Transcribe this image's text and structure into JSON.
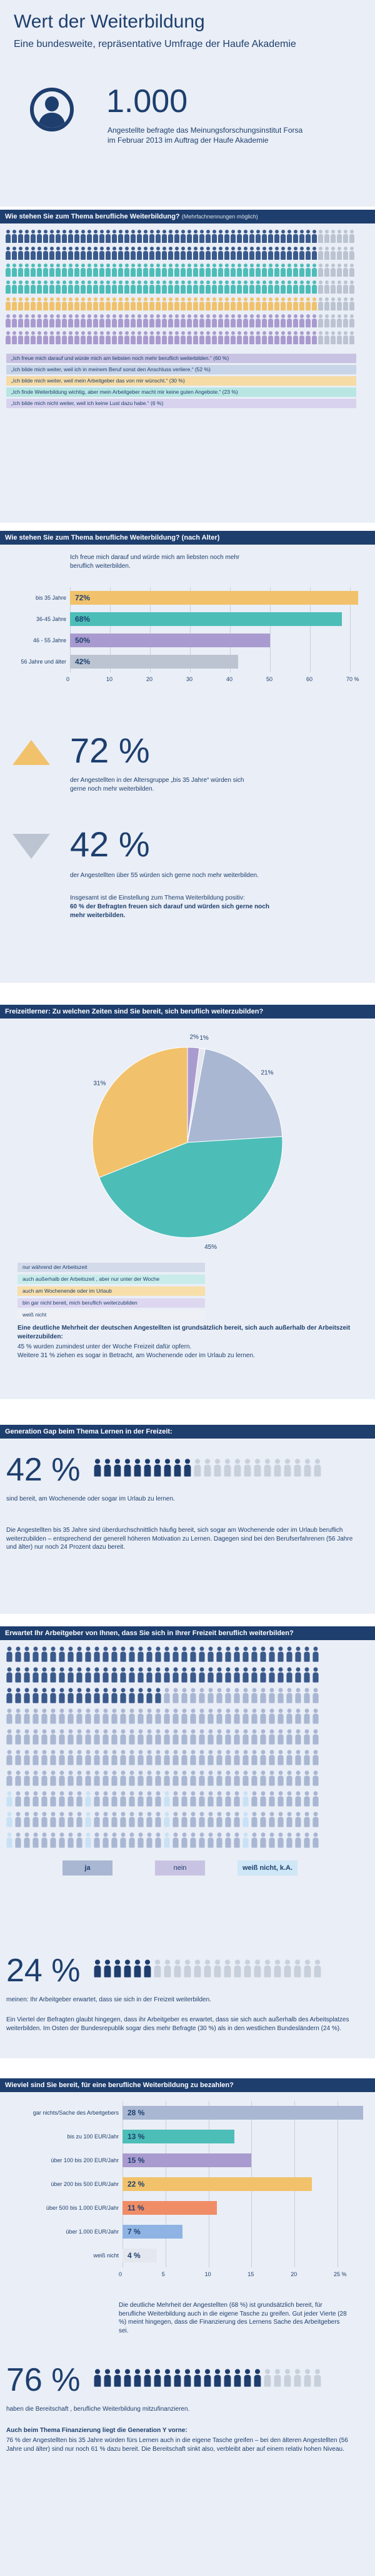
{
  "header": {
    "title": "Wert der Weiterbildung",
    "subtitle": "Eine bundesweite, repräsentative Umfrage der Haufe Akademie",
    "count": "1.000",
    "count_desc_1": "Angestellte befragte das Meinungsforschungsinstitut Forsa",
    "count_desc_2": "im Februar 2013 im Auftrag der Haufe Akademie",
    "icon": "person-avatar-icon"
  },
  "colors": {
    "navy": "#1e3e6e",
    "blue": "#3a5a8c",
    "teal": "#4dbdb8",
    "yellow": "#f1c26b",
    "purple": "#a99bcf",
    "lavender": "#c9c3e3",
    "grey": "#bcc4d2",
    "orange": "#f08d67",
    "light_bg": "#eaeef6"
  },
  "s1": {
    "title": "Wie stehen Sie zum Thema berufliche Weiterbildung?",
    "title_note": "(Mehrfachnennungen möglich)",
    "legend": [
      "„Ich freue mich darauf und würde mich am liebsten noch mehr beruflich weiterbilden.“ (60 %)",
      "„Ich bilde mich weiter, weil ich in meinem Beruf sonst den Anschluss verliere.“ (52 %)",
      "„Ich bilde mich weiter, weil mein Arbeitgeber das von mir wünscht.“ (30 %)",
      "„Ich finde Weiterbildung wichtig, aber mein Arbeitgeber macht mir keine guten Angebote.“ (23 %)",
      "„Ich bilde mich nicht weiter, weil ich keine Lust dazu habe.“ (6 %)"
    ]
  },
  "s2": {
    "title": "Wie stehen Sie zum Thema berufliche Weiterbildung? (nach Alter)",
    "question": "Ich freue mich darauf und würde mich am liebsten noch mehr beruflich weiterbilden.",
    "stat1_value": "72 %",
    "stat1_text": "der Angestellten in der Altersgruppe „bis 35 Jahre“ würden sich gerne noch mehr weiterbilden.",
    "stat2_value": "42 %",
    "stat2_text": "der Angestellten über 55 würden sich gerne noch mehr weiterbilden.",
    "summary_1": "Insgesamt ist die Einstellung zum Thema Weiterbildung positiv:",
    "summary_2": "60 % der Befragten freuen sich darauf und würden sich gerne noch mehr weiterbilden."
  },
  "s3": {
    "title": "Freizeitlerner: Zu welchen Zeiten sind Sie bereit, sich beruflich weiterzubilden?",
    "legend": [
      "nur während der Arbeitszeit",
      "auch außerhalb der Arbeitszeit , aber nur unter der Woche",
      "auch am Wochenende oder im Urlaub",
      "bin gar nicht bereit, mich beruflich weiterzubilden",
      "weiß nicht"
    ],
    "text_bold": "Eine deutliche Mehrheit der deutschen Angestellten ist grundsätzlich bereit, sich auch außerhalb der Arbeitszeit weiterzubilden:",
    "text_1": "45 % wurden zumindest unter der Woche Freizeit dafür opfern.",
    "text_2": "Weitere 31 % ziehen es sogar in Betracht, am Wochenende oder im Urlaub zu lernen."
  },
  "s4": {
    "title": "Generation Gap beim Thema Lernen in der Freizeit:",
    "stat_value": "42 %",
    "stat_caption": "sind bereit, am Wochenende oder sogar im Urlaub zu lernen.",
    "paragraph": "Die Angestellten bis 35 Jahre sind überdurchschnittlich häufig bereit, sich sogar am Wochenende oder im Urlaub beruflich weiterzubilden – entsprechend der generell höheren Motivation zu Lernen. Dagegen sind bei den Berufserfahrenen (56 Jahre und älter) nur noch 24 Prozent dazu bereit."
  },
  "s5": {
    "title": "Erwartet Ihr Arbeitgeber von Ihnen, dass Sie sich in Ihrer Freizeit beruflich weiterbilden?",
    "legend": [
      "ja",
      "nein",
      "weiß nicht, k.A."
    ],
    "stat_value": "24 %",
    "stat_caption": "meinen: Ihr Arbeitgeber erwartet, dass sie sich in der Freizeit weiterbilden.",
    "paragraph": "Ein Viertel der Befragten glaubt hingegen, dass ihr Arbeitgeber es erwartet, dass sie sich auch außerhalb des Arbeitsplatzes weiterbilden. Im Osten der Bundesrepublik sogar dies mehr Befragte (30 %) als in den westlichen Bundesländern (24 %)."
  },
  "s6": {
    "title": "Wieviel sind Sie bereit, für eine berufliche Weiterbildung zu bezahlen?",
    "summary": "Die deutliche Mehrheit der Angestellten (68 %) ist grundsätzlich bereit, für berufliche Weiterbildung auch in die eigene Tasche zu greifen. Gut jeder Vierte (28 %) meint hingegen, dass die Finanzierung des Lernens Sache des Arbeitgebers sei.",
    "stat_value": "76 %",
    "stat_caption": "haben die Bereitschaft , berufliche Weiterbildung mitzufinanzieren.",
    "footer_bold": "Auch beim Thema Finanzierung liegt die Generation Y vorne:",
    "footer_text": "76 % der Angestellten bis 35 Jahre würden fürs Lernen auch in die eigene Tasche greifen – bei den älteren Angestellten (56 Jahre und älter) sind nur noch 61 % dazu bereit. Die Bereitschaft sinkt also, verbleibt aber auf einem relativ hohen Niveau."
  },
  "chart_data": [
    {
      "type": "bar",
      "title": "Wie stehen Sie zum Thema berufliche Weiterbildung? (nach Alter)",
      "categories": [
        "bis 35 Jahre",
        "36-45 Jahre",
        "46 - 55 Jahre",
        "56 Jahre und älter"
      ],
      "values": [
        72,
        68,
        50,
        42
      ],
      "value_labels": [
        "72%",
        "68%",
        "50%",
        "42%"
      ],
      "colors": [
        "#f1c26b",
        "#4dbdb8",
        "#a99bcf",
        "#bcc4d2"
      ],
      "ticks": [
        "0",
        "10",
        "20",
        "30",
        "40",
        "50",
        "60",
        "70 %"
      ],
      "xlim": [
        0,
        70
      ],
      "orientation": "horizontal"
    },
    {
      "type": "pie",
      "title": "Freizeitlerner: Zu welchen Zeiten sind Sie bereit, sich beruflich weiterzubilden?",
      "labels": [
        "nur während der Arbeitszeit",
        "auch außerhalb der Arbeitszeit , aber nur unter der Woche",
        "auch am Wochenende oder im Urlaub",
        "bin gar nicht bereit, mich beruflich weiterzubilden",
        "weiß nicht"
      ],
      "values": [
        21,
        45,
        31,
        2,
        1
      ],
      "value_labels": [
        "21%",
        "45%",
        "31%",
        "2%",
        "1%"
      ],
      "colors": [
        "#a9b7d3",
        "#4dbdb8",
        "#f1c26b",
        "#a99bcf",
        "#e4e7ee"
      ]
    },
    {
      "type": "bar",
      "title": "Wieviel sind Sie bereit, für eine berufliche Weiterbildung zu bezahlen?",
      "categories": [
        "gar nichts/Sache des Arbeitgebers",
        "bis zu 100 EUR/Jahr",
        "über 100 bis 200 EUR/Jahr",
        "über 200 bis 500 EUR/Jahr",
        "über 500 bis 1.000 EUR/Jahr",
        "über 1.000 EUR/Jahr",
        "weiß nicht"
      ],
      "values": [
        28,
        13,
        15,
        22,
        11,
        7,
        4
      ],
      "value_labels": [
        "28 %",
        "13 %",
        "15 %",
        "22 %",
        "11 %",
        "7 %",
        "4 %"
      ],
      "colors": [
        "#a9b7d3",
        "#4dbdb8",
        "#a99bcf",
        "#f1c26b",
        "#f08d67",
        "#8fb4e3",
        "#e4e7ee"
      ],
      "ticks": [
        "0",
        "5",
        "10",
        "15",
        "20",
        "25 %"
      ],
      "xlim": [
        0,
        25
      ],
      "orientation": "horizontal"
    }
  ]
}
